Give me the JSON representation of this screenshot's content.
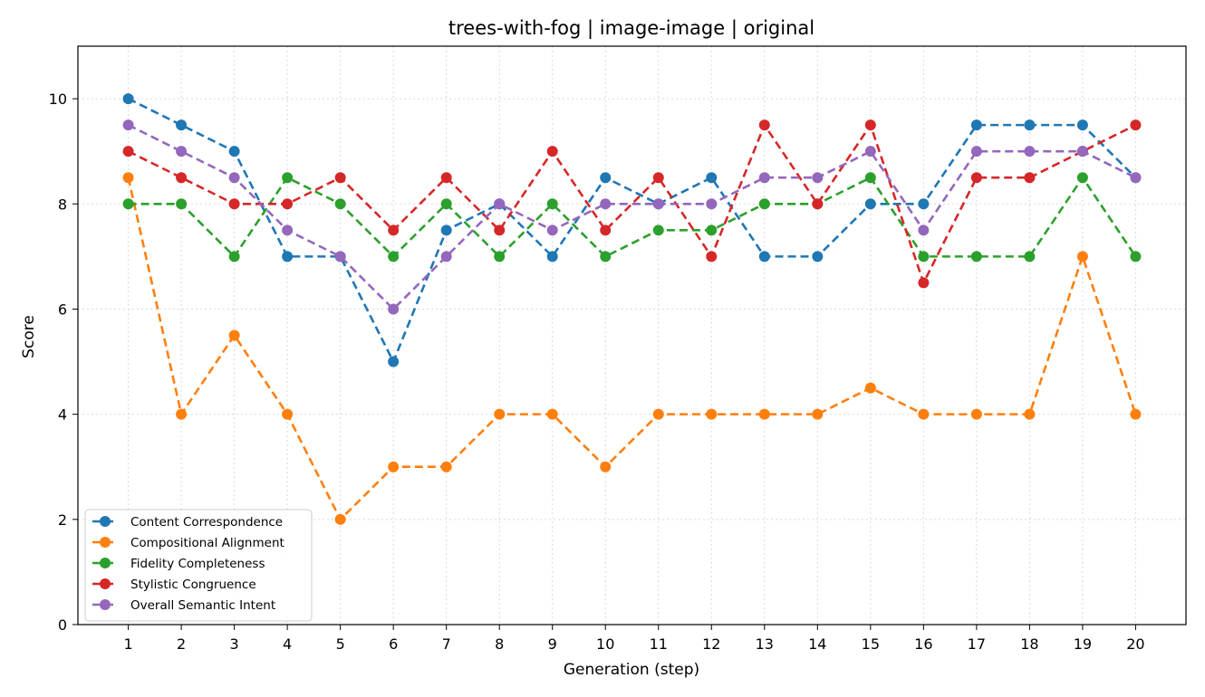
{
  "chart_data": {
    "type": "line",
    "title": "trees-with-fog | image-image | original",
    "xlabel": "Generation (step)",
    "ylabel": "Score",
    "x": [
      1,
      2,
      3,
      4,
      5,
      6,
      7,
      8,
      9,
      10,
      11,
      12,
      13,
      14,
      15,
      16,
      17,
      18,
      19,
      20
    ],
    "xlim": [
      0.05,
      20.95
    ],
    "ylim": [
      0,
      11
    ],
    "yticks": [
      0,
      2,
      4,
      6,
      8,
      10
    ],
    "grid": true,
    "legend_position": "lower-left",
    "series": [
      {
        "name": "Content Correspondence",
        "color": "#1f77b4",
        "values": [
          10,
          9.5,
          9,
          7,
          7,
          5,
          7.5,
          8,
          7,
          8.5,
          8,
          8.5,
          7,
          7,
          8,
          8,
          9.5,
          9.5,
          9.5,
          8.5
        ]
      },
      {
        "name": "Compositional Alignment",
        "color": "#ff7f0e",
        "values": [
          8.5,
          4,
          5.5,
          4,
          2,
          3,
          3,
          4,
          4,
          3,
          4,
          4,
          4,
          4,
          4.5,
          4,
          4,
          4,
          7,
          4
        ]
      },
      {
        "name": "Fidelity Completeness",
        "color": "#2ca02c",
        "values": [
          8,
          8,
          7,
          8.5,
          8,
          7,
          8,
          7,
          8,
          7,
          7.5,
          7.5,
          8,
          8,
          8.5,
          7,
          7,
          7,
          8.5,
          7
        ]
      },
      {
        "name": "Stylistic Congruence",
        "color": "#d62728",
        "values": [
          9,
          8.5,
          8,
          8,
          8.5,
          7.5,
          8.5,
          7.5,
          9,
          7.5,
          8.5,
          7,
          9.5,
          8,
          9.5,
          6.5,
          8.5,
          8.5,
          9,
          9.5
        ]
      },
      {
        "name": "Overall Semantic Intent",
        "color": "#9467bd",
        "values": [
          9.5,
          9,
          8.5,
          7.5,
          7,
          6,
          7,
          8,
          7.5,
          8,
          8,
          8,
          8.5,
          8.5,
          9,
          7.5,
          9,
          9,
          9,
          8.5
        ]
      }
    ]
  }
}
